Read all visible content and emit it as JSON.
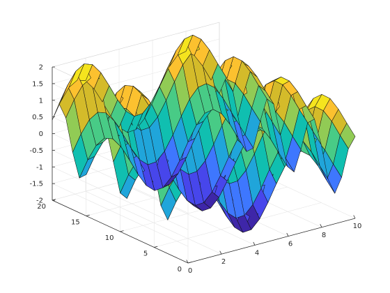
{
  "chart_data": {
    "type": "surface",
    "title": "",
    "xlabel": "",
    "ylabel": "",
    "zlabel": "",
    "function": "z = sin(x) + cos(y)",
    "x": [
      0,
      0.5,
      1,
      1.5,
      2,
      2.5,
      3,
      3.5,
      4,
      4.5,
      5,
      5.5,
      6,
      6.5,
      7,
      7.5,
      8,
      8.5,
      9,
      9.5,
      10
    ],
    "y": [
      0,
      1,
      2,
      3,
      4,
      5,
      6,
      7,
      8,
      9,
      10,
      11,
      12,
      13,
      14,
      15,
      16,
      17,
      18,
      19,
      20
    ],
    "xlim": [
      0,
      10
    ],
    "ylim": [
      0,
      20
    ],
    "zlim": [
      -2,
      2
    ],
    "x_ticks": [
      "0",
      "2",
      "4",
      "6",
      "8",
      "10"
    ],
    "y_ticks": [
      "0",
      "5",
      "10",
      "15",
      "20"
    ],
    "z_ticks": [
      "-2",
      "-1.5",
      "-1",
      "-0.5",
      "0",
      "0.5",
      "1",
      "1.5",
      "2"
    ],
    "colormap": [
      "#3e26a8",
      "#4746eb",
      "#3e77fe",
      "#20a5da",
      "#10bfb0",
      "#48cb86",
      "#91cb55",
      "#d4bb2a",
      "#fcc12f",
      "#f5e41e"
    ],
    "grid": true,
    "box": "back-walls"
  }
}
